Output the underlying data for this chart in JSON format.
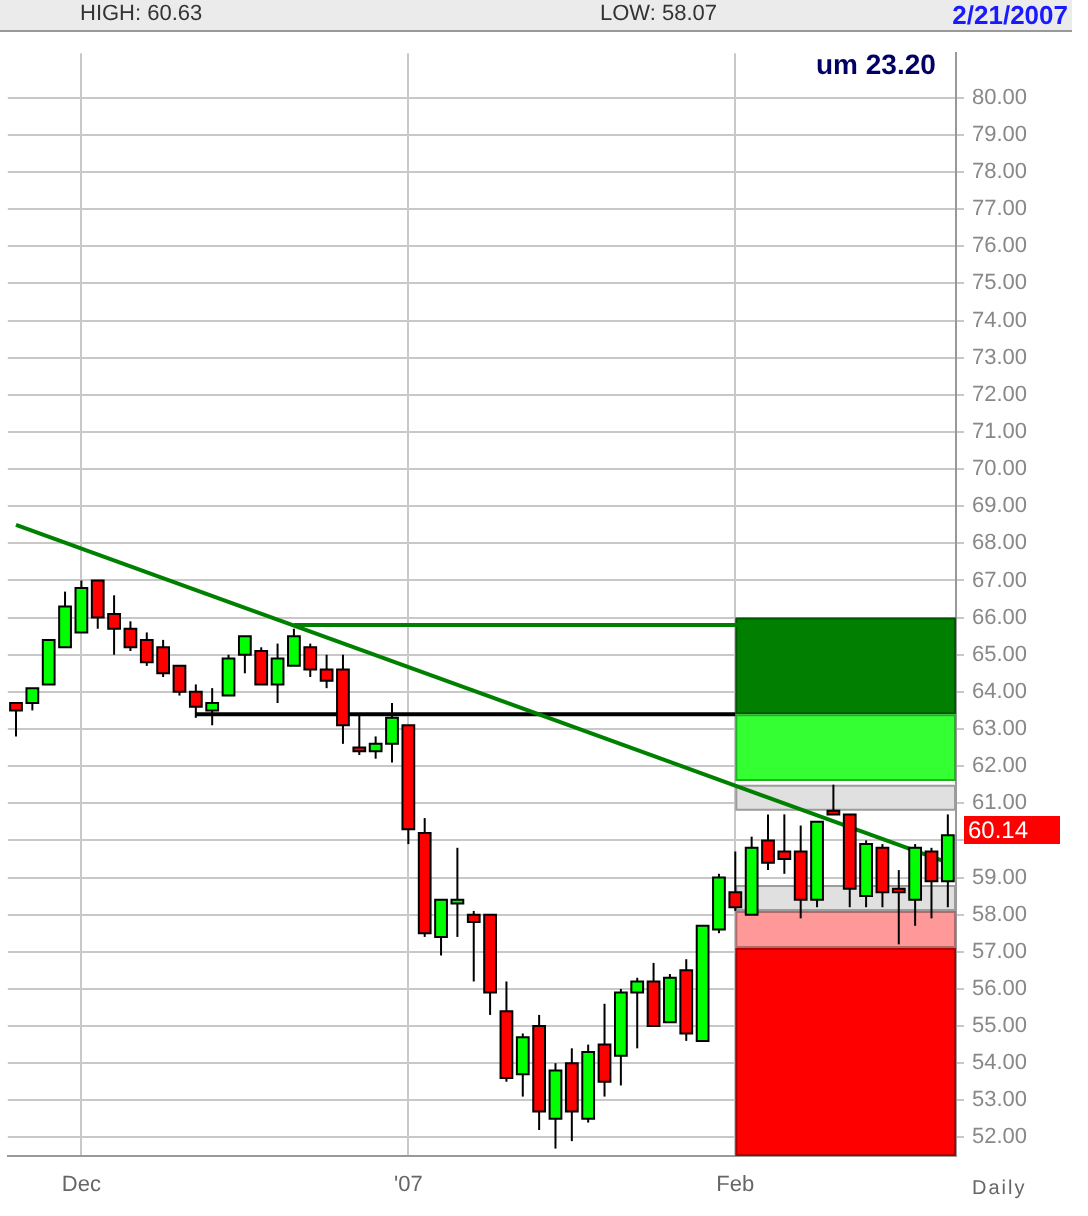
{
  "chart_data": {
    "type": "candlestick",
    "categories": [
      null,
      null,
      null,
      null,
      "Dec",
      null,
      null,
      null,
      null,
      null,
      null,
      null,
      null,
      null,
      null,
      null,
      null,
      null,
      null,
      null,
      null,
      null,
      null,
      null,
      "'07",
      null,
      null,
      null,
      null,
      null,
      null,
      null,
      null,
      null,
      null,
      null,
      null,
      null,
      null,
      null,
      null,
      null,
      null,
      null,
      "Feb",
      null,
      null,
      null,
      null,
      null,
      null,
      null,
      null,
      null,
      null,
      null,
      null,
      null
    ],
    "ohlc": [
      [
        63.7,
        63.7,
        62.8,
        63.5
      ],
      [
        63.7,
        64.1,
        63.5,
        64.1
      ],
      [
        64.2,
        65.4,
        64.2,
        65.4
      ],
      [
        65.2,
        66.7,
        65.2,
        66.3
      ],
      [
        65.6,
        67.0,
        65.6,
        66.8
      ],
      [
        67.0,
        67.0,
        65.7,
        66.0
      ],
      [
        66.1,
        66.6,
        65.0,
        65.7
      ],
      [
        65.7,
        65.9,
        65.1,
        65.2
      ],
      [
        65.4,
        65.6,
        64.7,
        64.8
      ],
      [
        65.2,
        65.4,
        64.4,
        64.5
      ],
      [
        64.7,
        64.7,
        63.9,
        64.0
      ],
      [
        64.0,
        64.2,
        63.3,
        63.6
      ],
      [
        63.5,
        64.1,
        63.1,
        63.7
      ],
      [
        63.9,
        65.0,
        63.9,
        64.9
      ],
      [
        65.0,
        65.5,
        64.5,
        65.5
      ],
      [
        65.1,
        65.2,
        64.2,
        64.2
      ],
      [
        64.2,
        65.3,
        63.7,
        64.9
      ],
      [
        64.7,
        65.7,
        64.7,
        65.5
      ],
      [
        65.2,
        65.3,
        64.4,
        64.6
      ],
      [
        64.6,
        65.0,
        64.1,
        64.3
      ],
      [
        64.6,
        65.0,
        62.6,
        63.1
      ],
      [
        62.5,
        63.4,
        62.3,
        62.4
      ],
      [
        62.4,
        62.8,
        62.2,
        62.6
      ],
      [
        62.6,
        63.7,
        62.1,
        63.3
      ],
      [
        63.1,
        63.1,
        59.9,
        60.3
      ],
      [
        60.2,
        60.6,
        57.4,
        57.5
      ],
      [
        57.4,
        58.4,
        56.9,
        58.4
      ],
      [
        58.3,
        59.8,
        57.4,
        58.4
      ],
      [
        58.0,
        58.1,
        56.2,
        57.8
      ],
      [
        58.0,
        58.0,
        55.3,
        55.9
      ],
      [
        55.4,
        56.2,
        53.5,
        53.6
      ],
      [
        53.7,
        54.8,
        53.1,
        54.7
      ],
      [
        55.0,
        55.3,
        52.2,
        52.7
      ],
      [
        52.5,
        54.0,
        51.7,
        53.8
      ],
      [
        54.0,
        54.4,
        51.9,
        52.7
      ],
      [
        52.5,
        54.5,
        52.4,
        54.3
      ],
      [
        54.5,
        55.6,
        53.1,
        53.5
      ],
      [
        54.2,
        56.0,
        53.4,
        55.9
      ],
      [
        55.9,
        56.3,
        54.4,
        56.2
      ],
      [
        56.2,
        56.7,
        55.0,
        55.0
      ],
      [
        55.1,
        56.4,
        55.1,
        56.3
      ],
      [
        56.5,
        56.8,
        54.6,
        54.8
      ],
      [
        54.6,
        57.7,
        54.6,
        57.7
      ],
      [
        57.6,
        59.1,
        57.5,
        59.0
      ],
      [
        58.6,
        59.7,
        58.1,
        58.2
      ],
      [
        58.0,
        60.1,
        58.0,
        59.8
      ],
      [
        60.0,
        60.7,
        59.2,
        59.4
      ],
      [
        59.7,
        60.7,
        59.1,
        59.5
      ],
      [
        59.7,
        60.4,
        57.9,
        58.4
      ],
      [
        58.4,
        60.5,
        58.2,
        60.5
      ],
      [
        60.8,
        61.5,
        60.7,
        60.7
      ],
      [
        60.7,
        60.7,
        58.2,
        58.7
      ],
      [
        58.5,
        60.0,
        58.2,
        59.9
      ],
      [
        59.8,
        59.9,
        58.2,
        58.6
      ],
      [
        58.7,
        59.2,
        57.2,
        58.6
      ],
      [
        58.4,
        59.9,
        57.7,
        59.8
      ],
      [
        59.7,
        59.8,
        57.9,
        58.9
      ],
      [
        58.9,
        60.7,
        58.2,
        60.14
      ]
    ],
    "colors": [
      "#ff0000",
      "#00ff00",
      "#00ff00",
      "#00ff00",
      "#00ff00",
      "#ff0000",
      "#ff0000",
      "#ff0000",
      "#ff0000",
      "#ff0000",
      "#ff0000",
      "#ff0000",
      "#00ff00",
      "#00ff00",
      "#00ff00",
      "#ff0000",
      "#00ff00",
      "#00ff00",
      "#ff0000",
      "#ff0000",
      "#ff0000",
      "#ff0000",
      "#00ff00",
      "#00ff00",
      "#ff0000",
      "#ff0000",
      "#00ff00",
      "#00ff00",
      "#ff0000",
      "#ff0000",
      "#ff0000",
      "#00ff00",
      "#ff0000",
      "#00ff00",
      "#ff0000",
      "#00ff00",
      "#ff0000",
      "#00ff00",
      "#00ff00",
      "#ff0000",
      "#00ff00",
      "#ff0000",
      "#00ff00",
      "#00ff00",
      "#ff0000",
      "#00ff00",
      "#ff0000",
      "#ff0000",
      "#ff0000",
      "#00ff00",
      "#ff0000",
      "#ff0000",
      "#00ff00",
      "#ff0000",
      "#ff0000",
      "#00ff00",
      "#ff0000",
      "#00ff00"
    ],
    "series": [
      {
        "type": "line",
        "color": "#008000",
        "values": [
          68.5,
          null,
          null,
          null,
          null,
          null,
          null,
          null,
          null,
          null,
          null,
          null,
          null,
          null,
          null,
          null,
          null,
          null,
          null,
          null,
          null,
          null,
          null,
          null,
          null,
          null,
          null,
          null,
          null,
          null,
          null,
          null,
          null,
          null,
          null,
          null,
          null,
          null,
          null,
          null,
          null,
          null,
          null,
          null,
          null,
          null,
          null,
          null,
          null,
          null,
          null,
          null,
          null,
          null,
          null,
          null,
          null,
          59.4
        ]
      },
      {
        "type": "line",
        "color": "#008000",
        "values": [
          null,
          null,
          null,
          null,
          null,
          null,
          null,
          null,
          null,
          null,
          null,
          null,
          null,
          null,
          null,
          null,
          null,
          65.8,
          null,
          null,
          null,
          null,
          null,
          null,
          null,
          null,
          null,
          null,
          null,
          null,
          null,
          null,
          null,
          null,
          null,
          null,
          null,
          null,
          null,
          null,
          null,
          null,
          null,
          null,
          null,
          null,
          null,
          null,
          null,
          null,
          null,
          null,
          null,
          null,
          null,
          null,
          null,
          65.8
        ]
      },
      {
        "type": "line",
        "color": "#000000",
        "values": [
          null,
          null,
          null,
          null,
          null,
          null,
          null,
          null,
          null,
          null,
          null,
          63.4,
          null,
          null,
          null,
          null,
          null,
          null,
          null,
          null,
          null,
          null,
          null,
          null,
          null,
          null,
          null,
          null,
          null,
          null,
          null,
          null,
          null,
          null,
          null,
          null,
          null,
          null,
          null,
          null,
          null,
          null,
          null,
          null,
          63.4,
          null,
          null,
          null,
          null,
          null,
          null,
          null,
          null,
          null,
          null,
          null,
          null,
          null
        ]
      }
    ],
    "bands": [
      {
        "axis": "y",
        "from": 63.4,
        "to": 66.0,
        "color": "#007f00"
      },
      {
        "axis": "y",
        "from": 61.6,
        "to": 63.4,
        "color": "#33ff33"
      },
      {
        "axis": "y",
        "from": 60.8,
        "to": 61.5,
        "color": "#e0e0e0"
      },
      {
        "axis": "y",
        "from": 58.1,
        "to": 58.8,
        "color": "#e0e0e0"
      },
      {
        "axis": "y",
        "from": 57.1,
        "to": 58.1,
        "color": "#ff9999"
      },
      {
        "axis": "y",
        "from": 51.5,
        "to": 57.1,
        "color": "#ff0000"
      }
    ],
    "ylim": [
      51.5,
      81.2
    ],
    "yticks": [
      {
        "value": 52,
        "label": "52.00"
      },
      {
        "value": 53,
        "label": "53.00"
      },
      {
        "value": 54,
        "label": "54.00"
      },
      {
        "value": 55,
        "label": "55.00"
      },
      {
        "value": 56,
        "label": "56.00"
      },
      {
        "value": 57,
        "label": "57.00"
      },
      {
        "value": 58,
        "label": "58.00"
      },
      {
        "value": 59,
        "label": "59.00"
      },
      {
        "value": 60,
        "label": null
      },
      {
        "value": 61,
        "label": "61.00"
      },
      {
        "value": 62,
        "label": "62.00"
      },
      {
        "value": 63,
        "label": "63.00"
      },
      {
        "value": 64,
        "label": "64.00"
      },
      {
        "value": 65,
        "label": "65.00"
      },
      {
        "value": 66,
        "label": "66.00"
      },
      {
        "value": 67,
        "label": "67.00"
      },
      {
        "value": 68,
        "label": "68.00"
      },
      {
        "value": 69,
        "label": "69.00"
      },
      {
        "value": 70,
        "label": "70.00"
      },
      {
        "value": 71,
        "label": "71.00"
      },
      {
        "value": 72,
        "label": "72.00"
      },
      {
        "value": 73,
        "label": "73.00"
      },
      {
        "value": 74,
        "label": "74.00"
      },
      {
        "value": 75,
        "label": "75.00"
      },
      {
        "value": 76,
        "label": "76.00"
      },
      {
        "value": 77,
        "label": "77.00"
      },
      {
        "value": 78,
        "label": "78.00"
      },
      {
        "value": 79,
        "label": "79.00"
      },
      {
        "value": 80,
        "label": "80.00"
      }
    ],
    "grid": true,
    "annotations": [
      "HIGH: 60.63",
      "LOW: 58.07",
      "2/21/2007",
      "um 23.20",
      "Daily",
      "60.14"
    ]
  }
}
